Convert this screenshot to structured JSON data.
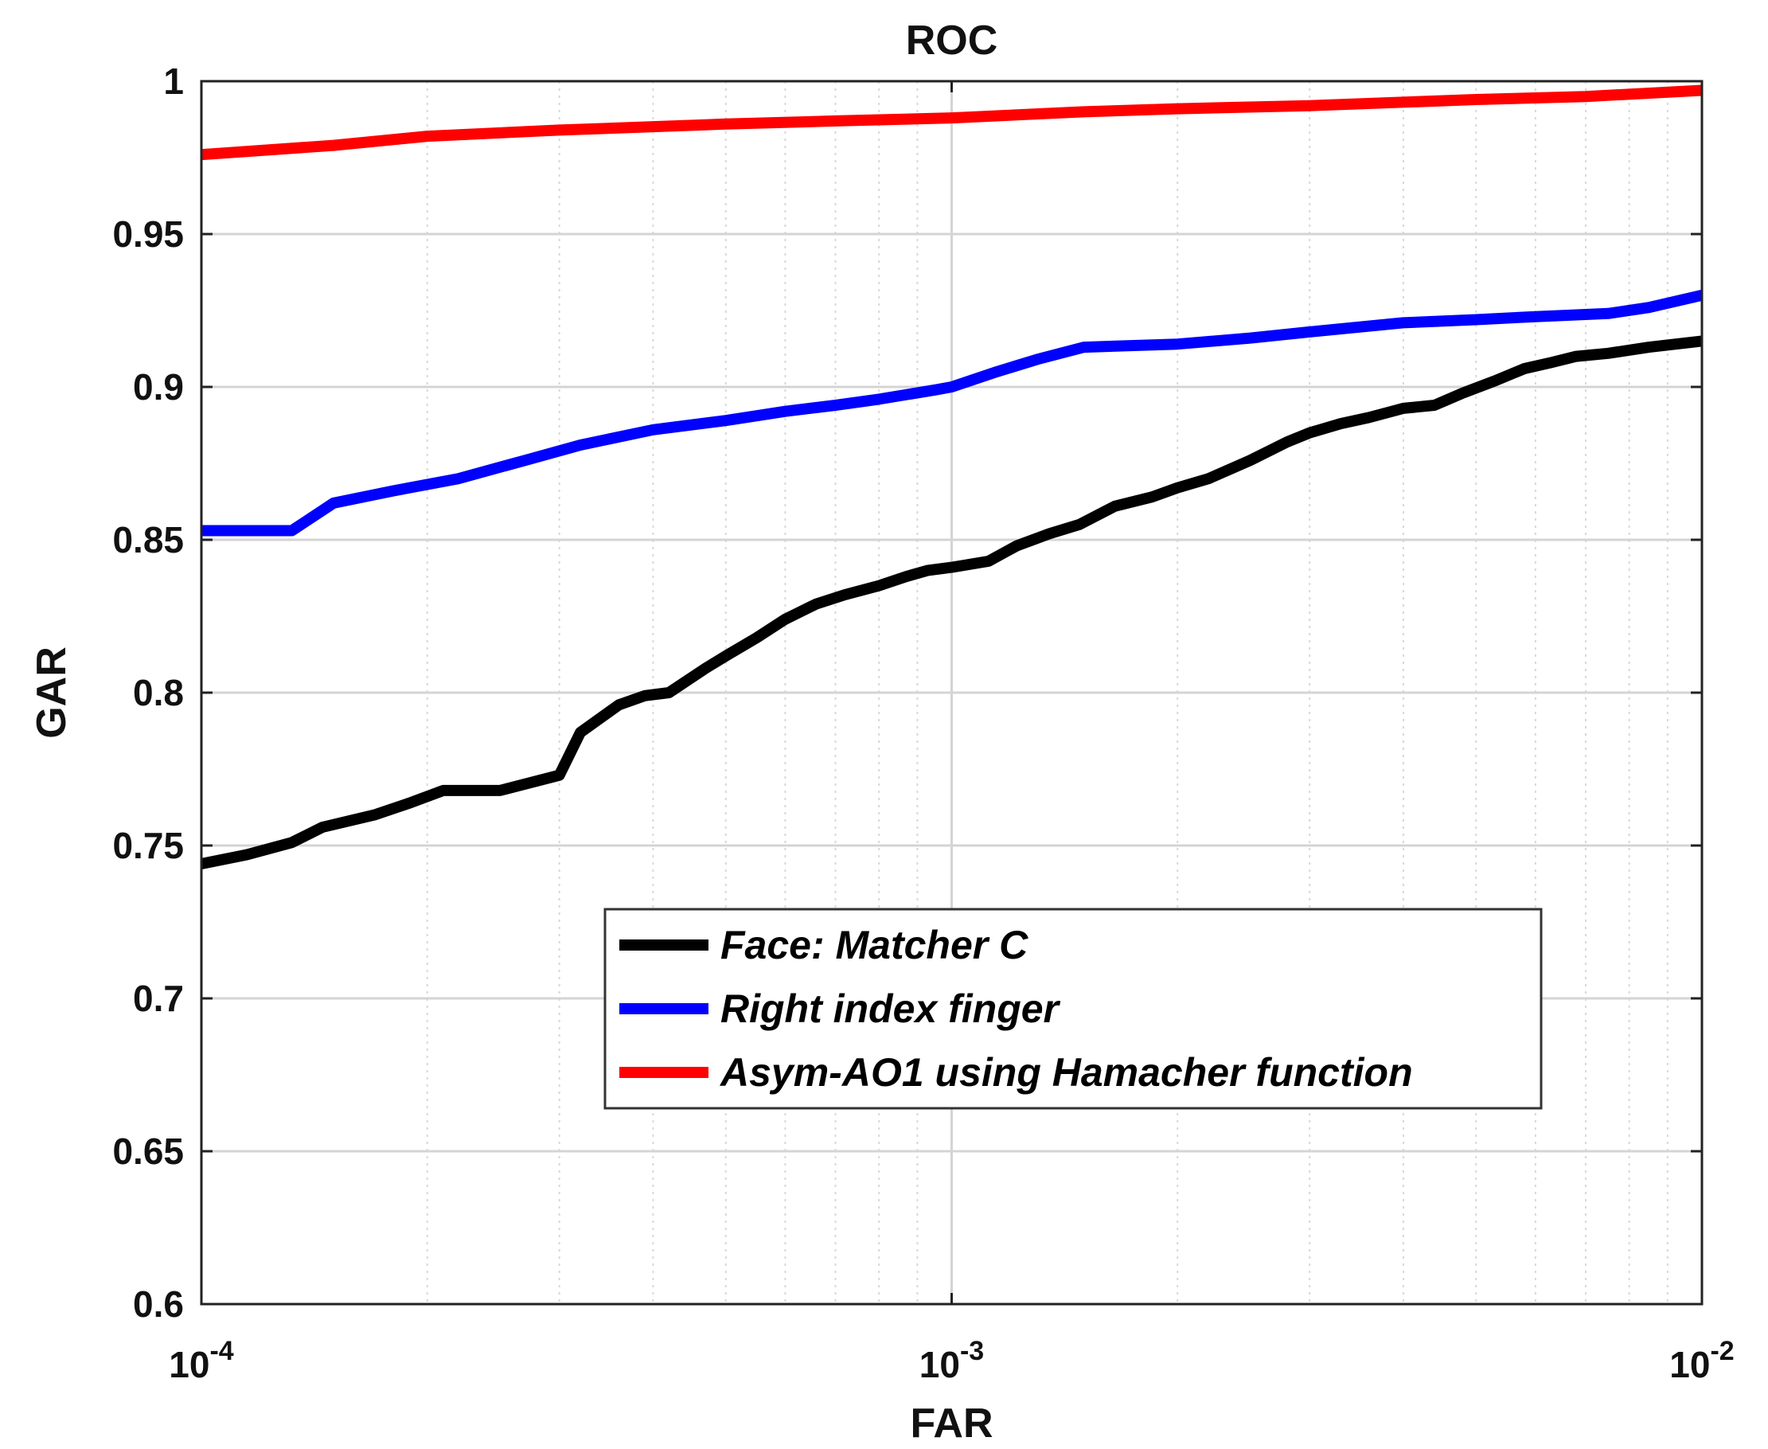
{
  "chart_data": {
    "type": "line",
    "title": "ROC",
    "xlabel": "FAR",
    "ylabel": "GAR",
    "xscale": "log",
    "xlim": [
      0.0001,
      0.01
    ],
    "ylim": [
      0.6,
      1.0
    ],
    "yticks": [
      0.6,
      0.65,
      0.7,
      0.75,
      0.8,
      0.85,
      0.9,
      0.95,
      1.0
    ],
    "ytick_labels": [
      "0.6",
      "0.65",
      "0.7",
      "0.75",
      "0.8",
      "0.85",
      "0.9",
      "0.95",
      "1"
    ],
    "xticks": [
      {
        "value": 0.0001,
        "base": "10",
        "exp": "-4"
      },
      {
        "value": 0.001,
        "base": "10",
        "exp": "-3"
      },
      {
        "value": 0.01,
        "base": "10",
        "exp": "-2"
      }
    ],
    "grid": true,
    "legend_position": "lower-center",
    "series": [
      {
        "name": "Face: Matcher C",
        "color": "#000000",
        "x": [
          0.0001,
          0.000115,
          0.000132,
          0.000145,
          0.00017,
          0.00019,
          0.00021,
          0.00025,
          0.0003,
          0.00032,
          0.00036,
          0.00039,
          0.00042,
          0.00047,
          0.0005,
          0.00055,
          0.0006,
          0.00066,
          0.00072,
          0.0008,
          0.00087,
          0.00093,
          0.001,
          0.00112,
          0.00122,
          0.00135,
          0.00148,
          0.00165,
          0.00185,
          0.002,
          0.0022,
          0.0025,
          0.0028,
          0.003,
          0.0033,
          0.0036,
          0.004,
          0.0044,
          0.0048,
          0.0053,
          0.0058,
          0.0063,
          0.0068,
          0.0075,
          0.0085,
          0.01
        ],
        "y": [
          0.744,
          0.747,
          0.751,
          0.756,
          0.76,
          0.764,
          0.768,
          0.768,
          0.773,
          0.787,
          0.796,
          0.799,
          0.8,
          0.808,
          0.812,
          0.818,
          0.824,
          0.829,
          0.832,
          0.835,
          0.838,
          0.84,
          0.841,
          0.843,
          0.848,
          0.852,
          0.855,
          0.861,
          0.864,
          0.867,
          0.87,
          0.876,
          0.882,
          0.885,
          0.888,
          0.89,
          0.893,
          0.894,
          0.898,
          0.902,
          0.906,
          0.908,
          0.91,
          0.911,
          0.913,
          0.915
        ]
      },
      {
        "name": "Right index finger",
        "color": "#0000ff",
        "x": [
          0.0001,
          0.00012,
          0.000132,
          0.00015,
          0.00018,
          0.00022,
          0.00027,
          0.00032,
          0.0004,
          0.0005,
          0.0006,
          0.0007,
          0.0008,
          0.00095,
          0.001,
          0.00115,
          0.0013,
          0.0015,
          0.002,
          0.0025,
          0.003,
          0.004,
          0.005,
          0.006,
          0.0075,
          0.0085,
          0.01
        ],
        "y": [
          0.853,
          0.853,
          0.853,
          0.862,
          0.866,
          0.87,
          0.876,
          0.881,
          0.886,
          0.889,
          0.892,
          0.894,
          0.896,
          0.899,
          0.9,
          0.905,
          0.909,
          0.913,
          0.914,
          0.916,
          0.918,
          0.921,
          0.922,
          0.923,
          0.924,
          0.926,
          0.93
        ]
      },
      {
        "name": "Asym-AO1 using  Hamacher function",
        "color": "#ff0000",
        "x": [
          0.0001,
          0.00015,
          0.0002,
          0.0003,
          0.0005,
          0.0007,
          0.001,
          0.0015,
          0.002,
          0.003,
          0.005,
          0.007,
          0.01
        ],
        "y": [
          0.976,
          0.979,
          0.982,
          0.984,
          0.986,
          0.987,
          0.988,
          0.99,
          0.991,
          0.992,
          0.994,
          0.995,
          0.997
        ]
      }
    ]
  }
}
